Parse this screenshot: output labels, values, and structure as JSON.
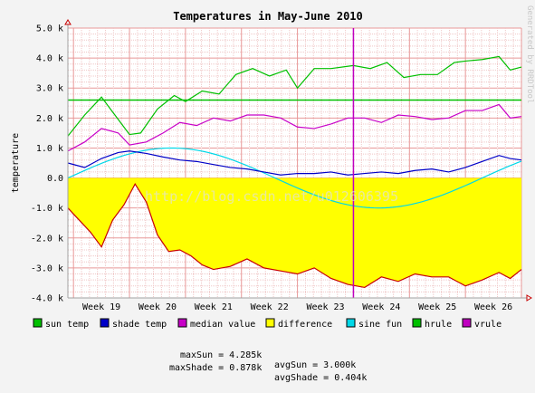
{
  "chart_data": {
    "type": "line",
    "title": "Temperatures in May-June 2010",
    "ylabel": "temperature",
    "xlabel": "",
    "ylim": [
      -4000,
      5000
    ],
    "yticks": [
      -4000,
      -3000,
      -2000,
      -1000,
      0,
      1000,
      2000,
      3000,
      4000,
      5000
    ],
    "ytick_labels": [
      "-4.0 k",
      "-3.0 k",
      "-2.0 k",
      "-1.0 k",
      "0.0",
      "1.0 k",
      "2.0 k",
      "3.0 k",
      "4.0 k",
      "5.0 k"
    ],
    "x_week_start": 18.9,
    "x_week_end": 27.0,
    "xtick_labels": [
      "Week 19",
      "Week 20",
      "Week 21",
      "Week 22",
      "Week 23",
      "Week 24",
      "Week 25",
      "Week 26"
    ],
    "xtick_weeks": [
      19,
      20,
      21,
      22,
      23,
      24,
      25,
      26
    ],
    "grid": true,
    "legend_position": "bottom",
    "watermark_side": "Generated by RRDTool",
    "watermark_center": "http://blog.csdn.net/u012606395",
    "hrule_value": 2600,
    "vrule_week": 24.0,
    "colors": {
      "sun": "#00c000",
      "shade": "#0000c8",
      "median": "#c800c8",
      "difference_fill": "#ffff00",
      "difference_line": "#c80000",
      "sine": "#00d8e8",
      "hrule": "#00c000",
      "vrule": "#c000c0",
      "background": "#ffffff",
      "canvas": "#f3f3f3",
      "grid_minor": "#f0c8c8",
      "grid_major": "#e89898"
    },
    "series": [
      {
        "name": "sun temp",
        "key": "sun",
        "weeks": [
          18.9,
          19.2,
          19.5,
          19.7,
          20.0,
          20.2,
          20.5,
          20.8,
          21.0,
          21.3,
          21.6,
          21.9,
          22.2,
          22.5,
          22.8,
          23.0,
          23.3,
          23.6,
          24.0,
          24.3,
          24.6,
          24.9,
          25.2,
          25.5,
          25.8,
          26.0,
          26.3,
          26.6,
          26.8,
          27.0
        ],
        "values": [
          1400,
          2100,
          2700,
          2200,
          1450,
          1500,
          2300,
          2750,
          2550,
          2900,
          2800,
          3450,
          3650,
          3400,
          3600,
          3000,
          3650,
          3650,
          3750,
          3650,
          3850,
          3350,
          3450,
          3450,
          3850,
          3900,
          3950,
          4050,
          3600,
          3700
        ]
      },
      {
        "name": "shade temp",
        "key": "shade",
        "weeks": [
          18.9,
          19.2,
          19.5,
          19.8,
          20.0,
          20.3,
          20.6,
          20.9,
          21.2,
          21.5,
          21.8,
          22.1,
          22.4,
          22.7,
          23.0,
          23.3,
          23.6,
          23.9,
          24.2,
          24.5,
          24.8,
          25.1,
          25.4,
          25.7,
          26.0,
          26.3,
          26.6,
          26.8,
          27.0
        ],
        "values": [
          500,
          350,
          650,
          850,
          900,
          820,
          700,
          600,
          550,
          450,
          350,
          300,
          200,
          100,
          150,
          150,
          200,
          100,
          150,
          200,
          150,
          250,
          300,
          200,
          350,
          550,
          750,
          650,
          600
        ]
      },
      {
        "name": "median value",
        "key": "median",
        "weeks": [
          18.9,
          19.2,
          19.5,
          19.8,
          20.0,
          20.3,
          20.6,
          20.9,
          21.2,
          21.5,
          21.8,
          22.1,
          22.4,
          22.7,
          23.0,
          23.3,
          23.6,
          23.9,
          24.2,
          24.5,
          24.8,
          25.1,
          25.4,
          25.7,
          26.0,
          26.3,
          26.6,
          26.8,
          27.0
        ],
        "values": [
          900,
          1200,
          1650,
          1500,
          1100,
          1200,
          1500,
          1850,
          1750,
          2000,
          1900,
          2100,
          2100,
          2000,
          1700,
          1650,
          1800,
          2000,
          2000,
          1850,
          2100,
          2050,
          1950,
          2000,
          2250,
          2250,
          2450,
          2000,
          2050
        ]
      },
      {
        "name": "difference",
        "key": "difference",
        "weeks": [
          18.9,
          19.1,
          19.3,
          19.5,
          19.7,
          19.9,
          20.1,
          20.3,
          20.5,
          20.7,
          20.9,
          21.1,
          21.3,
          21.5,
          21.8,
          22.1,
          22.4,
          22.7,
          23.0,
          23.3,
          23.6,
          23.9,
          24.2,
          24.5,
          24.8,
          25.1,
          25.4,
          25.7,
          26.0,
          26.3,
          26.6,
          26.8,
          27.0
        ],
        "values": [
          -1000,
          -1400,
          -1800,
          -2300,
          -1400,
          -900,
          -200,
          -800,
          -1900,
          -2450,
          -2400,
          -2600,
          -2900,
          -3050,
          -2950,
          -2700,
          -3000,
          -3100,
          -3200,
          -3000,
          -3350,
          -3550,
          -3650,
          -3300,
          -3450,
          -3200,
          -3300,
          -3300,
          -3600,
          -3400,
          -3150,
          -3350,
          -3050
        ]
      },
      {
        "name": "sine fun",
        "key": "sine",
        "sine_amplitude": 1000,
        "sine_phase_week": 18.9,
        "sine_period_weeks": 7.4
      },
      {
        "name": "hrule",
        "key": "hrule"
      },
      {
        "name": "vrule",
        "key": "vrule"
      }
    ]
  },
  "stats": {
    "row1_left": "maxSun = 4.285k",
    "row1_right": "avgSun = 3.000k",
    "row2_left": "maxShade = 0.878k",
    "row2_right": "avgShade = 0.404k"
  }
}
